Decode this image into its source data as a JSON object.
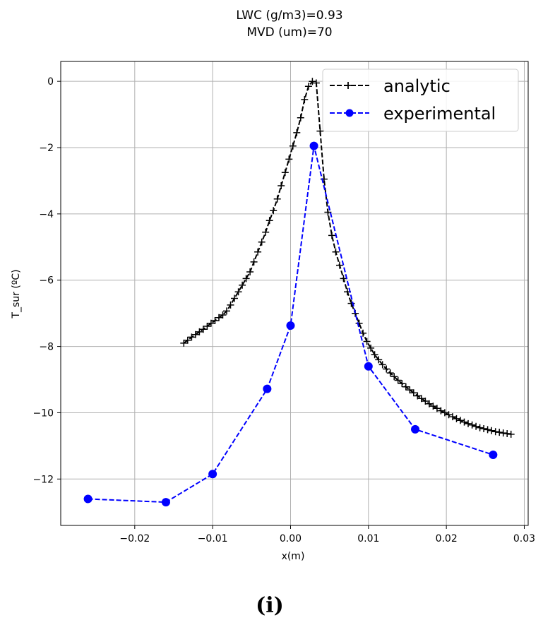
{
  "chart_data": {
    "type": "line",
    "title": [
      "LWC (g/m3)=0.93",
      "MVD (um)=70"
    ],
    "xlabel": "x(m)",
    "ylabel": "T_sur (ºC)",
    "xlim": [
      -0.0295,
      0.0305
    ],
    "ylim": [
      -13.4,
      0.6
    ],
    "x_ticks": [
      -0.02,
      -0.01,
      0.0,
      0.01,
      0.02,
      0.03
    ],
    "x_tick_labels": [
      "−0.02",
      "−0.01",
      "0.00",
      "0.01",
      "0.02",
      "0.03"
    ],
    "y_ticks": [
      0,
      -2,
      -4,
      -6,
      -8,
      -10,
      -12
    ],
    "y_tick_labels": [
      "0",
      "−2",
      "−4",
      "−6",
      "−8",
      "−10",
      "−12"
    ],
    "grid": true,
    "legend_position": "top-right",
    "series": [
      {
        "name": "analytic",
        "color": "#000000",
        "linestyle": "dashed",
        "marker": "plus",
        "x": [
          -0.0137,
          -0.0132,
          -0.0127,
          -0.0122,
          -0.0117,
          -0.0112,
          -0.0107,
          -0.0102,
          -0.0097,
          -0.0092,
          -0.0087,
          -0.0082,
          -0.0077,
          -0.0072,
          -0.0067,
          -0.0062,
          -0.0057,
          -0.0052,
          -0.0047,
          -0.0042,
          -0.0037,
          -0.0032,
          -0.0027,
          -0.0022,
          -0.0017,
          -0.0012,
          -0.0007,
          -0.0002,
          0.0003,
          0.0008,
          0.0013,
          0.0018,
          0.0023,
          0.0028,
          0.0033,
          0.0038,
          0.0043,
          0.0048,
          0.0053,
          0.0058,
          0.0063,
          0.0068,
          0.0073,
          0.0078,
          0.0083,
          0.0088,
          0.0093,
          0.0098,
          0.0103,
          0.0108,
          0.0113,
          0.0118,
          0.0123,
          0.0128,
          0.0133,
          0.0138,
          0.0143,
          0.0148,
          0.0153,
          0.0158,
          0.0163,
          0.0168,
          0.0173,
          0.0178,
          0.0183,
          0.0188,
          0.0193,
          0.0198,
          0.0203,
          0.0208,
          0.0213,
          0.0218,
          0.0223,
          0.0228,
          0.0233,
          0.0238,
          0.0243,
          0.0248,
          0.0253,
          0.0258,
          0.0263,
          0.0268,
          0.0273,
          0.0278,
          0.0283
        ],
        "y": [
          -7.9,
          -7.81,
          -7.72,
          -7.64,
          -7.56,
          -7.48,
          -7.39,
          -7.3,
          -7.22,
          -7.13,
          -7.05,
          -6.93,
          -6.75,
          -6.55,
          -6.35,
          -6.15,
          -5.95,
          -5.75,
          -5.45,
          -5.15,
          -4.85,
          -4.55,
          -4.2,
          -3.9,
          -3.55,
          -3.15,
          -2.75,
          -2.35,
          -1.95,
          -1.55,
          -1.1,
          -0.55,
          -0.15,
          0.0,
          -0.05,
          -1.5,
          -2.95,
          -3.95,
          -4.65,
          -5.15,
          -5.55,
          -5.95,
          -6.35,
          -6.7,
          -7.0,
          -7.3,
          -7.6,
          -7.85,
          -8.05,
          -8.25,
          -8.4,
          -8.55,
          -8.68,
          -8.8,
          -8.91,
          -9.02,
          -9.12,
          -9.22,
          -9.31,
          -9.4,
          -9.49,
          -9.57,
          -9.65,
          -9.73,
          -9.8,
          -9.87,
          -9.94,
          -10.0,
          -10.06,
          -10.12,
          -10.18,
          -10.23,
          -10.28,
          -10.33,
          -10.37,
          -10.41,
          -10.45,
          -10.48,
          -10.51,
          -10.54,
          -10.57,
          -10.59,
          -10.61,
          -10.63,
          -10.65
        ]
      },
      {
        "name": "experimental",
        "color": "#0000ff",
        "linestyle": "dashed",
        "marker": "circle",
        "x": [
          -0.026,
          -0.016,
          -0.01,
          -0.003,
          0.0,
          0.003,
          0.01,
          0.016,
          0.026
        ],
        "y": [
          -12.6,
          -12.7,
          -11.85,
          -9.28,
          -7.37,
          -1.95,
          -8.6,
          -10.5,
          -11.27
        ]
      }
    ]
  },
  "caption": "(i)"
}
